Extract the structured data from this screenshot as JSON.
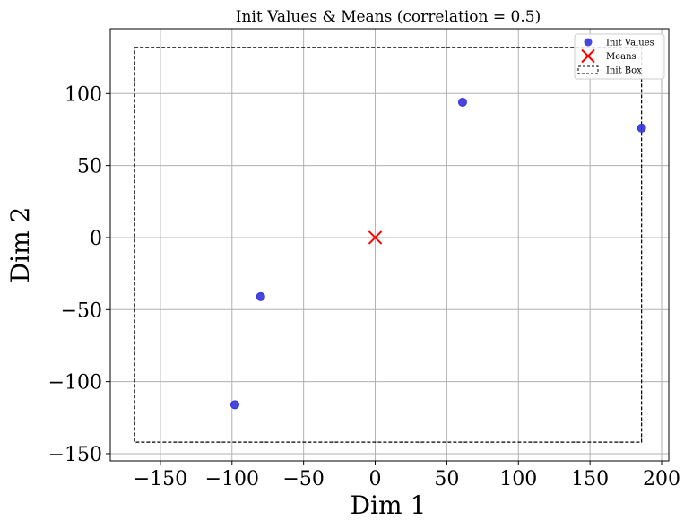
{
  "chart_data": {
    "type": "scatter",
    "title": "Init Values & Means (correlation = 0.5)",
    "xlabel": "Dim 1",
    "ylabel": "Dim 2",
    "xlim": [
      -185,
      205
    ],
    "ylim": [
      -155,
      145
    ],
    "xticks": [
      -150,
      -100,
      -50,
      0,
      50,
      100,
      150,
      200
    ],
    "yticks": [
      -150,
      -100,
      -50,
      0,
      50,
      100
    ],
    "grid": true,
    "legend_position": "top-right",
    "series": [
      {
        "name": "Init Values",
        "kind": "points",
        "marker": "circle",
        "color": "#3333dd",
        "points": [
          {
            "x": -98,
            "y": -116
          },
          {
            "x": -80,
            "y": -41
          },
          {
            "x": 61,
            "y": 94
          },
          {
            "x": 186,
            "y": 76
          }
        ]
      },
      {
        "name": "Means",
        "kind": "points",
        "marker": "x",
        "color": "#ff0000",
        "points": [
          {
            "x": 0,
            "y": 0
          }
        ]
      },
      {
        "name": "Init Box",
        "kind": "box",
        "style": "dashed",
        "color": "#000000",
        "x": [
          -168,
          186
        ],
        "y": [
          -142,
          132
        ]
      }
    ]
  }
}
